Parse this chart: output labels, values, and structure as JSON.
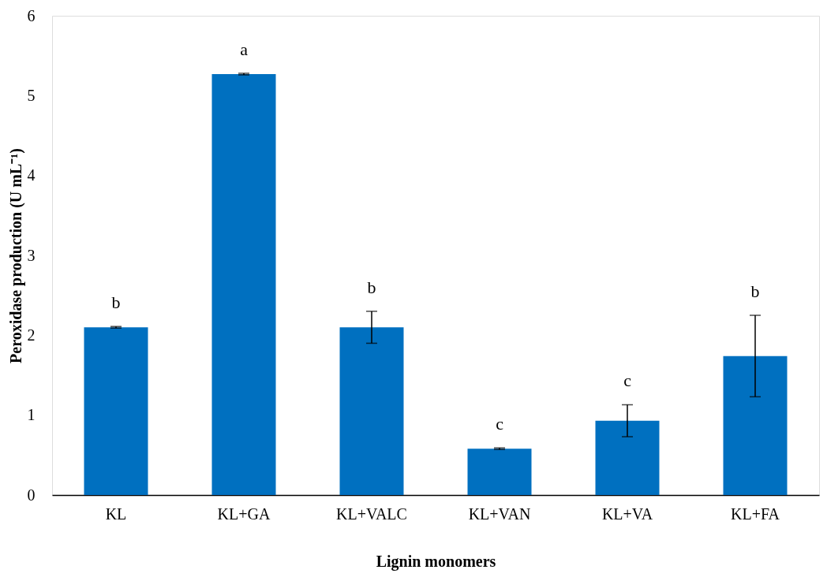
{
  "chart_data": {
    "type": "bar",
    "xlabel": "Lignin monomers",
    "ylabel": "Peroxidase production (U mL⁻¹)",
    "categories": [
      "KL",
      "KL+GA",
      "KL+VALC",
      "KL+VAN",
      "KL+VA",
      "KL+FA"
    ],
    "values": [
      2.1,
      5.27,
      2.1,
      0.58,
      0.93,
      1.74
    ],
    "errors": [
      0.01,
      0.01,
      0.2,
      0.01,
      0.2,
      0.51
    ],
    "colors": [
      "#0070c0",
      "#0070c0",
      "#0070c0",
      "#0070c0",
      "#0070c0",
      "#0070c0"
    ],
    "ylim": [
      0,
      6
    ],
    "yticks": [
      0,
      1,
      2,
      3,
      4,
      5,
      6
    ],
    "annotations": [
      "b",
      "a",
      "b",
      "c",
      "c",
      "b"
    ],
    "grid": false
  }
}
